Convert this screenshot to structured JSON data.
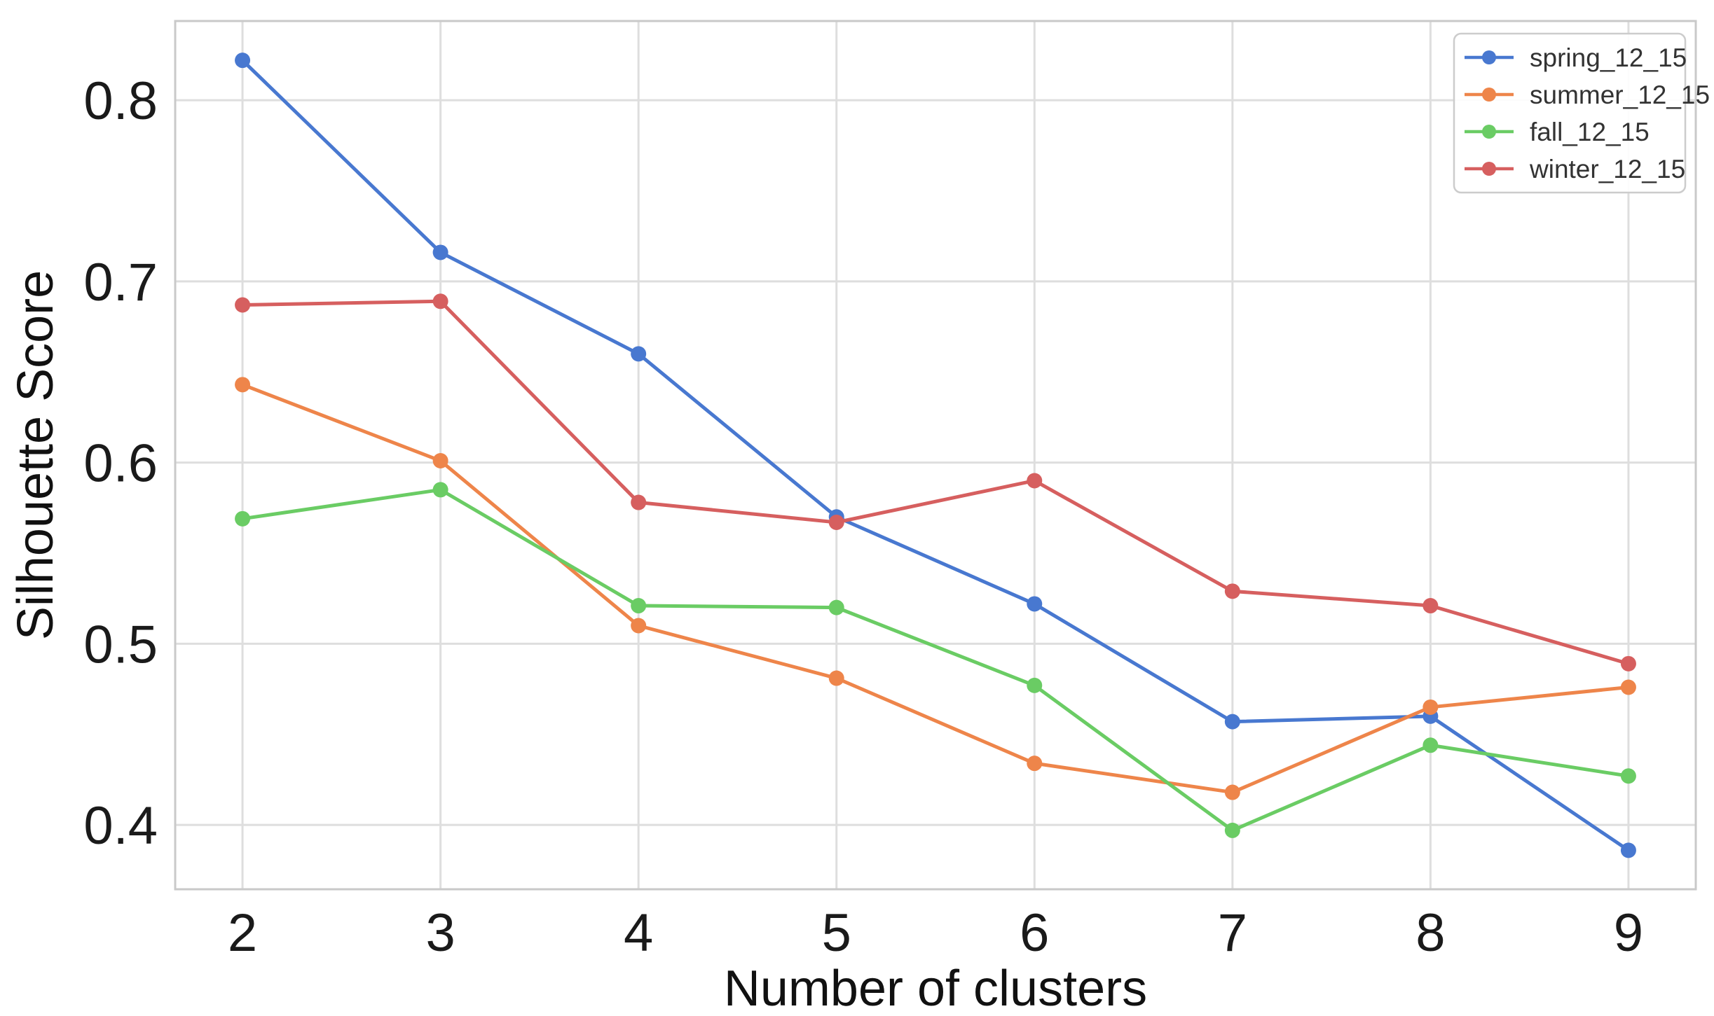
{
  "chart_data": {
    "type": "line",
    "title": "",
    "xlabel": "Number of clusters",
    "ylabel": "Silhouette Score",
    "x": [
      2,
      3,
      4,
      5,
      6,
      7,
      8,
      9
    ],
    "x_ticks": [
      "2",
      "3",
      "4",
      "5",
      "6",
      "7",
      "8",
      "9"
    ],
    "y_ticks": [
      0.4,
      0.5,
      0.6,
      0.7,
      0.8
    ],
    "xlim": [
      1.66,
      9.34
    ],
    "ylim": [
      0.3645,
      0.8437
    ],
    "grid": true,
    "legend_position": "upper right",
    "series": [
      {
        "name": "spring_12_15",
        "color": "#4878d0",
        "marker": "circle",
        "values": [
          0.822,
          0.716,
          0.66,
          0.57,
          0.522,
          0.457,
          0.46,
          0.386
        ]
      },
      {
        "name": "summer_12_15",
        "color": "#ee854a",
        "marker": "circle",
        "values": [
          0.643,
          0.601,
          0.51,
          0.481,
          0.434,
          0.418,
          0.465,
          0.476
        ]
      },
      {
        "name": "fall_12_15",
        "color": "#6acc64",
        "marker": "circle",
        "values": [
          0.569,
          0.585,
          0.521,
          0.52,
          0.477,
          0.397,
          0.444,
          0.427
        ]
      },
      {
        "name": "winter_12_15",
        "color": "#d65f5f",
        "marker": "circle",
        "values": [
          0.687,
          0.689,
          0.578,
          0.567,
          0.59,
          0.529,
          0.521,
          0.489
        ]
      }
    ],
    "styles": {
      "grid_color": "#dedede",
      "spine_color": "#c9c9c9",
      "tick_text_color": "#1a1a1a",
      "label_text_color": "#111111",
      "legend_border_color": "#cccccc",
      "legend_text_color": "#333333",
      "background": "#ffffff"
    }
  }
}
